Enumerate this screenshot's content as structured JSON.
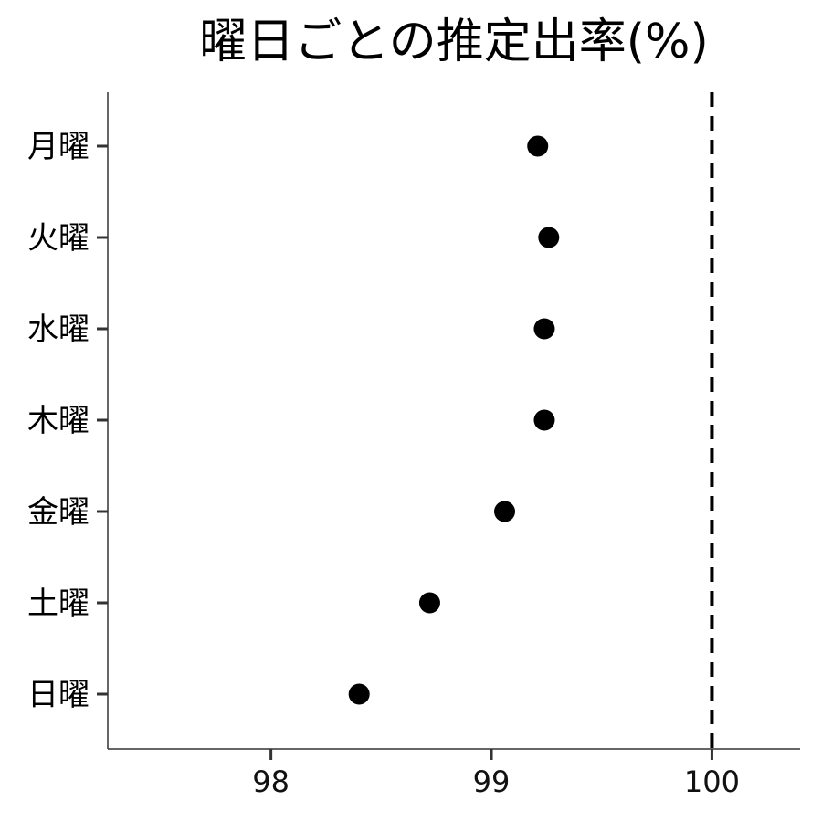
{
  "chart_data": {
    "type": "scatter",
    "title": "曜日ごとの推定出率(%)",
    "xlabel": "",
    "ylabel": "",
    "categories": [
      "月曜",
      "火曜",
      "水曜",
      "木曜",
      "金曜",
      "土曜",
      "日曜"
    ],
    "values": [
      99.21,
      99.26,
      99.24,
      99.24,
      99.06,
      98.72,
      98.4
    ],
    "xlim": [
      97.26,
      100.4
    ],
    "xticks": [
      {
        "value": 98,
        "label": "98"
      },
      {
        "value": 99,
        "label": "99"
      },
      {
        "value": 100,
        "label": "100"
      }
    ],
    "reference_line": {
      "value": 100,
      "style": "dashed"
    },
    "grid": false,
    "legend": "none",
    "point_color": "#000000",
    "axis_color": "#333333"
  }
}
